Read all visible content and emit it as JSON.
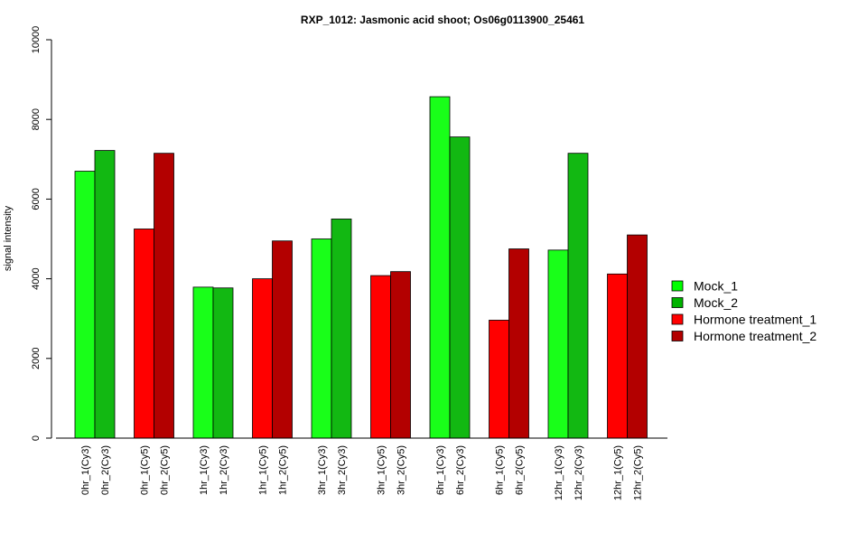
{
  "chart_data": {
    "type": "bar",
    "title": "RXP_1012: Jasmonic acid shoot; Os06g0113900_25461",
    "ylabel": "signal intensity",
    "xlabel": "",
    "ylim": [
      0,
      10000
    ],
    "yticks": [
      0,
      2000,
      4000,
      6000,
      8000,
      10000
    ],
    "legend_position": "right",
    "legend": [
      {
        "name": "Mock_1",
        "color": "#00ff00"
      },
      {
        "name": "Mock_2",
        "color": "#00b300"
      },
      {
        "name": "Hormone treatment_1",
        "color": "#ff0000"
      },
      {
        "name": "Hormone treatment_2",
        "color": "#b30000"
      }
    ],
    "bars": [
      {
        "label": "0hr_1(Cy3)",
        "value": 6700,
        "color": "#19ff19"
      },
      {
        "label": "0hr_2(Cy3)",
        "value": 7220,
        "color": "#12b812"
      },
      {
        "label": "0hr_1(Cy5)",
        "value": 5250,
        "color": "#ff0000"
      },
      {
        "label": "0hr_2(Cy5)",
        "value": 7150,
        "color": "#b30000"
      },
      {
        "label": "1hr_1(Cy3)",
        "value": 3790,
        "color": "#19ff19"
      },
      {
        "label": "1hr_2(Cy3)",
        "value": 3770,
        "color": "#12b812"
      },
      {
        "label": "1hr_1(Cy5)",
        "value": 4000,
        "color": "#ff0000"
      },
      {
        "label": "1hr_2(Cy5)",
        "value": 4950,
        "color": "#b30000"
      },
      {
        "label": "3hr_1(Cy3)",
        "value": 5000,
        "color": "#19ff19"
      },
      {
        "label": "3hr_2(Cy3)",
        "value": 5500,
        "color": "#12b812"
      },
      {
        "label": "3hr_1(Cy5)",
        "value": 4080,
        "color": "#ff0000"
      },
      {
        "label": "3hr_2(Cy5)",
        "value": 4180,
        "color": "#b30000"
      },
      {
        "label": "6hr_1(Cy3)",
        "value": 8570,
        "color": "#19ff19"
      },
      {
        "label": "6hr_2(Cy3)",
        "value": 7560,
        "color": "#12b812"
      },
      {
        "label": "6hr_1(Cy5)",
        "value": 2960,
        "color": "#ff0000"
      },
      {
        "label": "6hr_2(Cy5)",
        "value": 4750,
        "color": "#b30000"
      },
      {
        "label": "12hr_1(Cy3)",
        "value": 4720,
        "color": "#19ff19"
      },
      {
        "label": "12hr_2(Cy3)",
        "value": 7150,
        "color": "#12b812"
      },
      {
        "label": "12hr_1(Cy5)",
        "value": 4120,
        "color": "#ff0000"
      },
      {
        "label": "12hr_2(Cy5)",
        "value": 5100,
        "color": "#b30000"
      }
    ]
  }
}
